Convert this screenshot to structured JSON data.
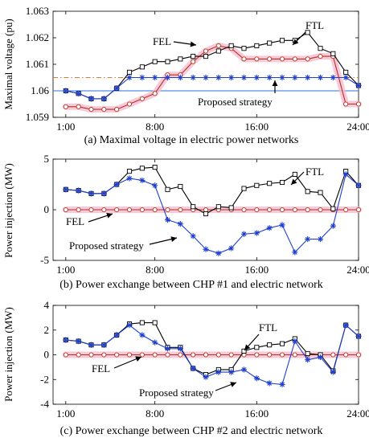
{
  "chart_data": [
    {
      "type": "line",
      "caption": "(a) Maximal voltage in electric power networks",
      "ylabel": "Maximal voltage (pu)",
      "ylim": [
        1.059,
        1.063
      ],
      "yticks": [
        "1.059",
        "1.06",
        "1.061",
        "1.062",
        "1.063"
      ],
      "xlim": [
        0,
        24
      ],
      "xticks": [
        "1:00",
        "8:00",
        "16:00",
        "24:00"
      ],
      "x": [
        1,
        2,
        3,
        4,
        5,
        6,
        7,
        8,
        9,
        10,
        11,
        12,
        13,
        14,
        15,
        16,
        17,
        18,
        19,
        20,
        21,
        22,
        23,
        24
      ],
      "reference_lines": [
        {
          "style": "dash-dot",
          "color": "#e07a2c",
          "value": 1.0605
        },
        {
          "style": "solid",
          "color": "#2f6fe0",
          "value": 1.06
        }
      ],
      "series": [
        {
          "name": "FTL",
          "color": "#000000",
          "marker": "square",
          "values": [
            1.06,
            1.0599,
            1.0597,
            1.0597,
            1.0601,
            1.0607,
            1.0609,
            1.0611,
            1.0611,
            1.0612,
            1.0613,
            1.0613,
            1.0615,
            1.0617,
            1.0616,
            1.0617,
            1.0618,
            1.0619,
            1.0619,
            1.0622,
            1.0616,
            1.0614,
            1.0607,
            1.0602
          ]
        },
        {
          "name": "FEL",
          "color": "#b5331b",
          "marker": "circle",
          "band": "#f5bcd2",
          "values": [
            1.0594,
            1.0594,
            1.0593,
            1.0593,
            1.0593,
            1.0595,
            1.0597,
            1.0599,
            1.0606,
            1.0606,
            1.0611,
            1.0615,
            1.0617,
            1.0616,
            1.0612,
            1.0612,
            1.0612,
            1.0612,
            1.0612,
            1.0612,
            1.0613,
            1.0613,
            1.0595,
            1.0595
          ]
        },
        {
          "name": "Proposed strategy",
          "color": "#1f3fcf",
          "marker": "star",
          "values": [
            1.06,
            1.0599,
            1.0597,
            1.0597,
            1.0601,
            1.0605,
            1.0605,
            1.0605,
            1.0605,
            1.0605,
            1.0605,
            1.0605,
            1.0605,
            1.0605,
            1.0605,
            1.0605,
            1.0605,
            1.0605,
            1.0605,
            1.0605,
            1.0605,
            1.0605,
            1.0605,
            1.0602
          ]
        }
      ],
      "annotations": [
        "FEL",
        "FTL",
        "Proposed strategy"
      ]
    },
    {
      "type": "line",
      "caption": "(b) Power exchange between CHP #1 and electric network",
      "ylabel": "Power injection (MW)",
      "ylim": [
        -5,
        5
      ],
      "yticks": [
        "-5",
        "0",
        "5"
      ],
      "xlim": [
        0,
        24
      ],
      "xticks": [
        "1:00",
        "8:00",
        "16:00",
        "24:00"
      ],
      "x": [
        1,
        2,
        3,
        4,
        5,
        6,
        7,
        8,
        9,
        10,
        11,
        12,
        13,
        14,
        15,
        16,
        17,
        18,
        19,
        20,
        21,
        22,
        23,
        24
      ],
      "series": [
        {
          "name": "FTL",
          "color": "#000000",
          "marker": "square",
          "values": [
            2.0,
            1.9,
            1.6,
            1.6,
            2.5,
            3.8,
            4.1,
            4.2,
            2.0,
            2.3,
            0.3,
            -0.4,
            0.3,
            0.2,
            2.1,
            2.4,
            2.6,
            2.7,
            3.5,
            1.8,
            1.7,
            0.1,
            3.8,
            2.4
          ]
        },
        {
          "name": "FEL",
          "color": "#b5331b",
          "marker": "circle",
          "band": "#f5bcd2",
          "values": [
            0,
            0,
            0,
            0,
            0,
            0,
            0,
            0,
            0,
            0,
            0,
            0,
            0,
            0,
            0,
            0,
            0,
            0,
            0,
            0,
            0,
            0,
            0,
            0
          ]
        },
        {
          "name": "Proposed strategy",
          "color": "#1f3fcf",
          "marker": "star",
          "values": [
            2.0,
            1.9,
            1.6,
            1.6,
            2.5,
            3.1,
            2.9,
            2.4,
            -1.0,
            -1.4,
            -2.6,
            -3.9,
            -4.3,
            -3.8,
            -2.4,
            -2.3,
            -1.8,
            -1.5,
            -4.2,
            -2.9,
            -2.9,
            -1.6,
            3.5,
            2.4
          ]
        }
      ],
      "annotations": [
        "FTL",
        "FEL",
        "Proposed strategy"
      ]
    },
    {
      "type": "line",
      "caption": "(c) Power exchange between CHP #2 and electric network",
      "ylabel": "Power injection (MW)",
      "ylim": [
        -4,
        4
      ],
      "yticks": [
        "-4",
        "-2",
        "0",
        "2",
        "4"
      ],
      "xlim": [
        0,
        24
      ],
      "xticks": [
        "1:00",
        "8:00",
        "16:00",
        "24:00"
      ],
      "x": [
        1,
        2,
        3,
        4,
        5,
        6,
        7,
        8,
        9,
        10,
        11,
        12,
        13,
        14,
        15,
        16,
        17,
        18,
        19,
        20,
        21,
        22,
        23,
        24
      ],
      "series": [
        {
          "name": "FTL",
          "color": "#000000",
          "marker": "square",
          "values": [
            1.2,
            1.1,
            0.8,
            0.8,
            1.6,
            2.5,
            2.6,
            2.6,
            0.6,
            0.6,
            -1.1,
            -1.6,
            -1.2,
            -1.2,
            0.3,
            0.6,
            0.8,
            0.9,
            1.3,
            0.1,
            0.0,
            -1.3,
            2.4,
            1.5
          ]
        },
        {
          "name": "FEL",
          "color": "#b5331b",
          "marker": "circle",
          "band": "#f5bcd2",
          "values": [
            0,
            0,
            0,
            0,
            0,
            0,
            0,
            0,
            0,
            0,
            0,
            0,
            0,
            0,
            0,
            0,
            0,
            0,
            0,
            0,
            0,
            0,
            0,
            0
          ]
        },
        {
          "name": "Proposed strategy",
          "color": "#1f3fcf",
          "marker": "star",
          "values": [
            1.2,
            1.1,
            0.8,
            0.8,
            1.6,
            2.4,
            1.6,
            1.0,
            0.5,
            0.5,
            -1.1,
            -1.8,
            -1.4,
            -1.4,
            -1.2,
            -1.9,
            -2.3,
            -2.4,
            1.1,
            -0.4,
            -0.2,
            -1.4,
            2.4,
            1.5
          ]
        }
      ],
      "annotations": [
        "FTL",
        "FEL",
        "Proposed strategy"
      ]
    }
  ]
}
